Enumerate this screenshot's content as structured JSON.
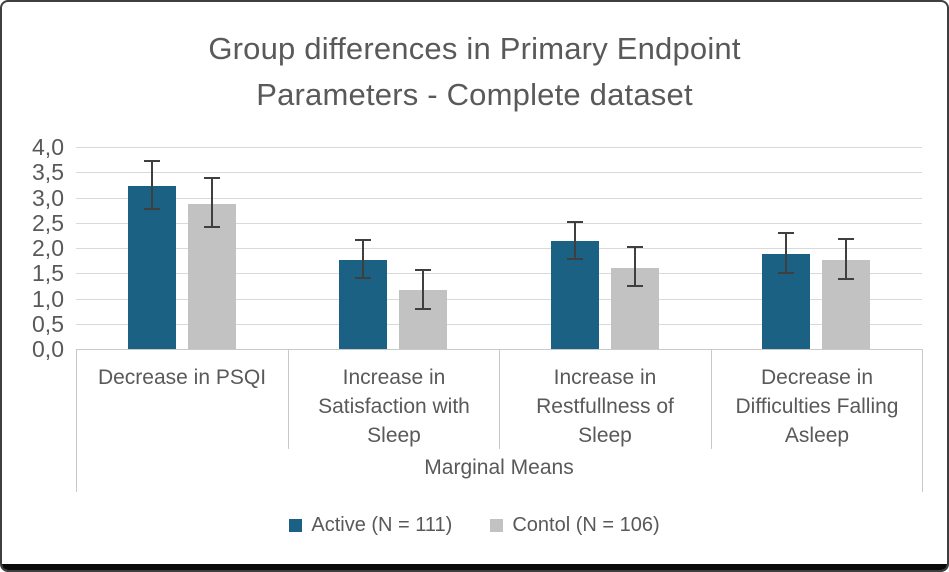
{
  "window": {
    "border_color": "#3F3F3F",
    "bottom_bar_color": "#0B0B0B",
    "background": "#FFFFFF"
  },
  "chart_data": {
    "type": "bar",
    "title": "Group differences in Primary Endpoint Parameters - Complete dataset",
    "title_lines": [
      "Group differences in Primary Endpoint",
      "Parameters - Complete dataset"
    ],
    "categories": [
      "Decrease in PSQI",
      "Increase in Satisfaction with Sleep",
      "Increase in Restfullness of Sleep",
      "Decrease in Difficulties Falling Asleep"
    ],
    "series": [
      {
        "name": "Active (N = 111)",
        "color": "#1B6184",
        "values": [
          3.22,
          1.77,
          2.13,
          1.89
        ],
        "error_low": [
          2.78,
          1.4,
          1.79,
          1.51
        ],
        "error_high": [
          3.72,
          2.16,
          2.52,
          2.3
        ]
      },
      {
        "name": "Contol (N = 106)",
        "color": "#C2C2C2",
        "values": [
          2.88,
          1.16,
          1.6,
          1.76
        ],
        "error_low": [
          2.41,
          0.8,
          1.24,
          1.38
        ],
        "error_high": [
          3.38,
          1.57,
          2.01,
          2.17
        ]
      }
    ],
    "xlabel": "Marginal Means",
    "ylabel": "",
    "ylim": [
      0,
      4
    ],
    "ytick_step": 0.5,
    "ytick_labels": [
      "0,0",
      "0,5",
      "1,0",
      "1,5",
      "2,0",
      "2,5",
      "3,0",
      "3,5",
      "4,0"
    ],
    "decimal_separator": ",",
    "grid": true,
    "legend_position": "bottom",
    "text_color": "#595959",
    "gridline_color": "#D9D9D9",
    "axis_line_color": "#C9C9C9",
    "error_bar_color": "#3F3F3F"
  }
}
